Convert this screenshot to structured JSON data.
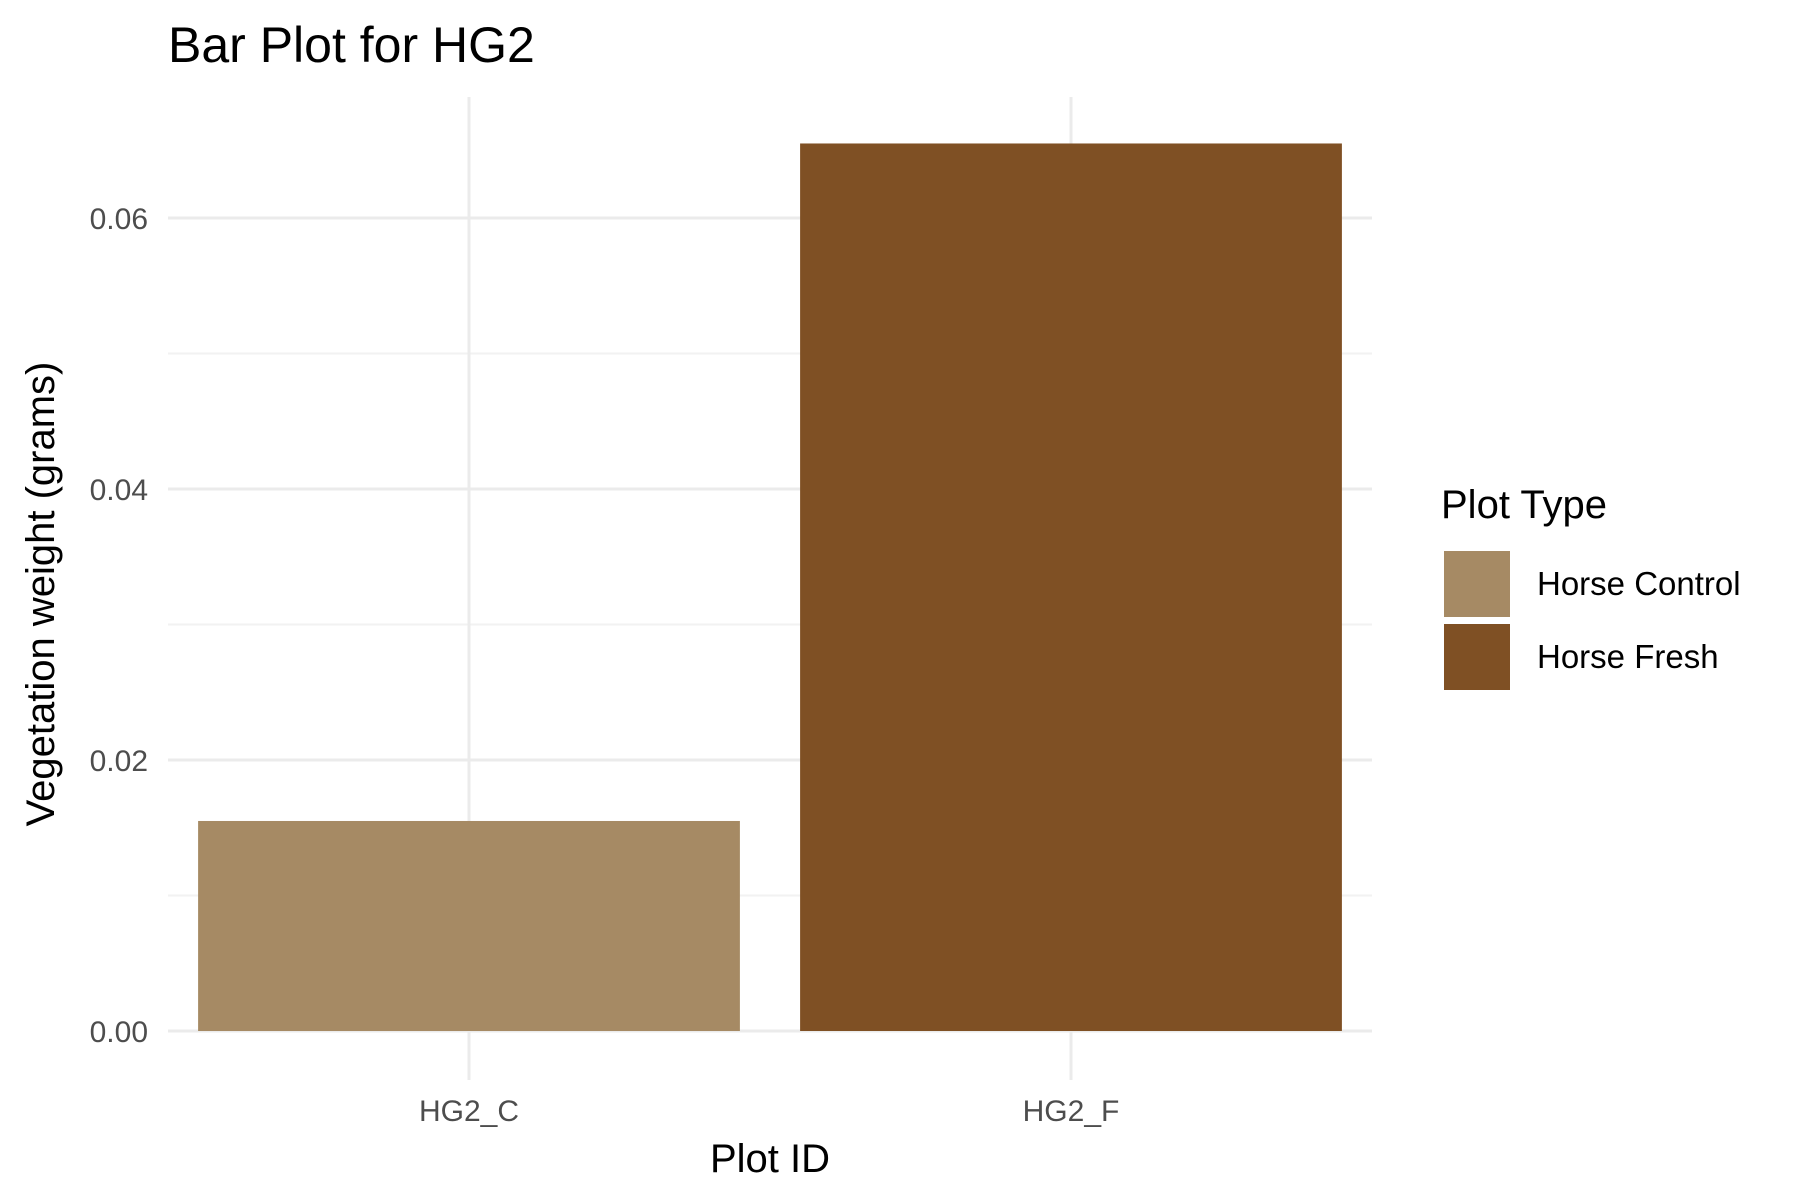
{
  "chart_data": {
    "type": "bar",
    "title": "Bar Plot for HG2",
    "xlabel": "Plot ID",
    "ylabel": "Vegetation weight (grams)",
    "categories": [
      "HG2_C",
      "HG2_F"
    ],
    "values": [
      0.0155,
      0.0655
    ],
    "ylim": [
      0,
      0.069
    ],
    "yticks": [
      0.0,
      0.02,
      0.04,
      0.06
    ],
    "ytick_labels": [
      "0.00",
      "0.02",
      "0.04",
      "0.06"
    ],
    "grid": true,
    "legend": {
      "title": "Plot Type",
      "placement": "right",
      "entries": [
        {
          "label": "Horse Control",
          "color": "#a68a64"
        },
        {
          "label": "Horse Fresh",
          "color": "#7f5024"
        }
      ]
    },
    "bar_colors": [
      "#a68a64",
      "#7f5024"
    ]
  }
}
